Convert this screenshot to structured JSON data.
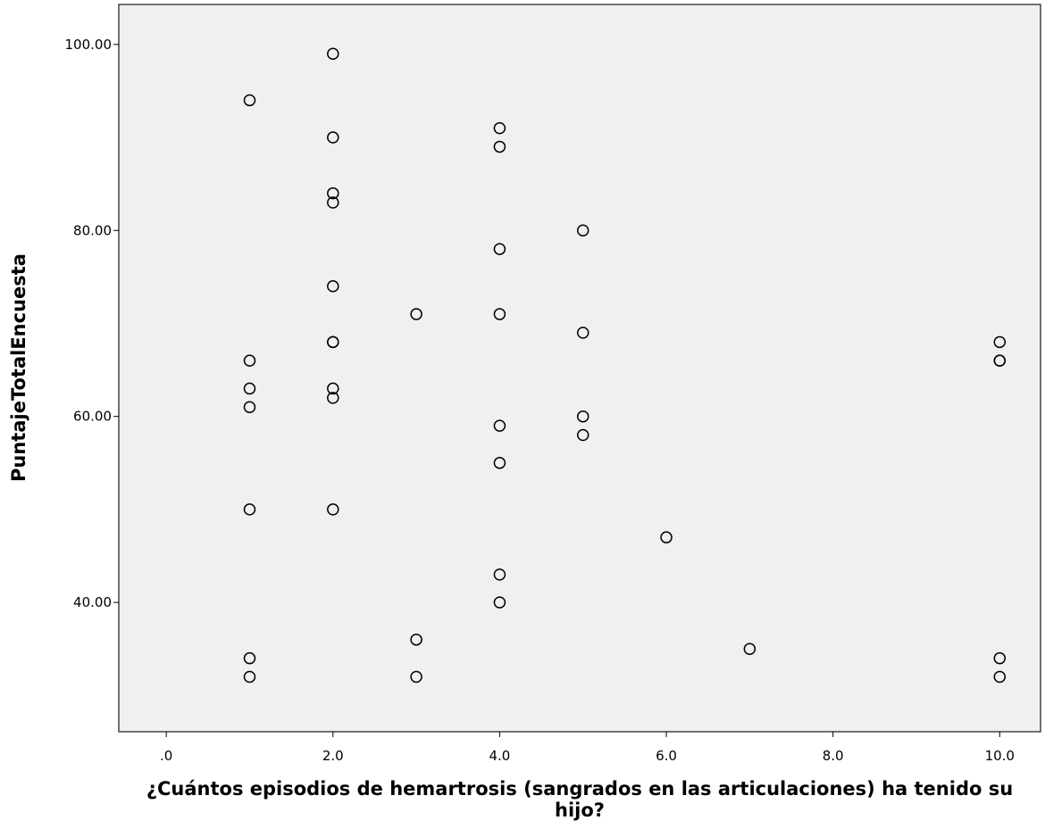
{
  "chart_data": {
    "type": "scatter",
    "x_label": "¿Cuántos episodios de hemartrosis (sangrados en las articulaciones) ha tenido su hijo?",
    "y_label": "PuntajeTotalEncuesta",
    "x": [
      1,
      1,
      1,
      1,
      1,
      1,
      1,
      2,
      2,
      2,
      2,
      2,
      2,
      2,
      2,
      2,
      2,
      3,
      3,
      3,
      4,
      4,
      4,
      4,
      4,
      4,
      4,
      4,
      5,
      5,
      5,
      5,
      6,
      7,
      10,
      10,
      10,
      10,
      10
    ],
    "values": [
      94,
      66,
      63,
      61,
      50,
      34,
      32,
      99,
      90,
      84,
      83,
      74,
      68,
      68,
      63,
      62,
      50,
      71,
      36,
      32,
      91,
      89,
      78,
      71,
      59,
      55,
      43,
      40,
      80,
      69,
      60,
      58,
      47,
      35,
      68,
      66,
      66,
      34,
      32
    ],
    "color": "#000000",
    "background": "#f0f0f0",
    "xlim": [
      -0.57,
      10.49
    ],
    "ylim": [
      26.1,
      104.3
    ],
    "xticks": [
      {
        "value": 0,
        "label": ".0"
      },
      {
        "value": 2,
        "label": "2.0"
      },
      {
        "value": 4,
        "label": "4.0"
      },
      {
        "value": 6,
        "label": "6.0"
      },
      {
        "value": 8,
        "label": "8.0"
      },
      {
        "value": 10,
        "label": "10.0"
      }
    ],
    "yticks": [
      {
        "value": 40,
        "label": "40.00"
      },
      {
        "value": 60,
        "label": "60.00"
      },
      {
        "value": 80,
        "label": "80.00"
      },
      {
        "value": 100,
        "label": "100.00"
      }
    ],
    "grid": false
  }
}
